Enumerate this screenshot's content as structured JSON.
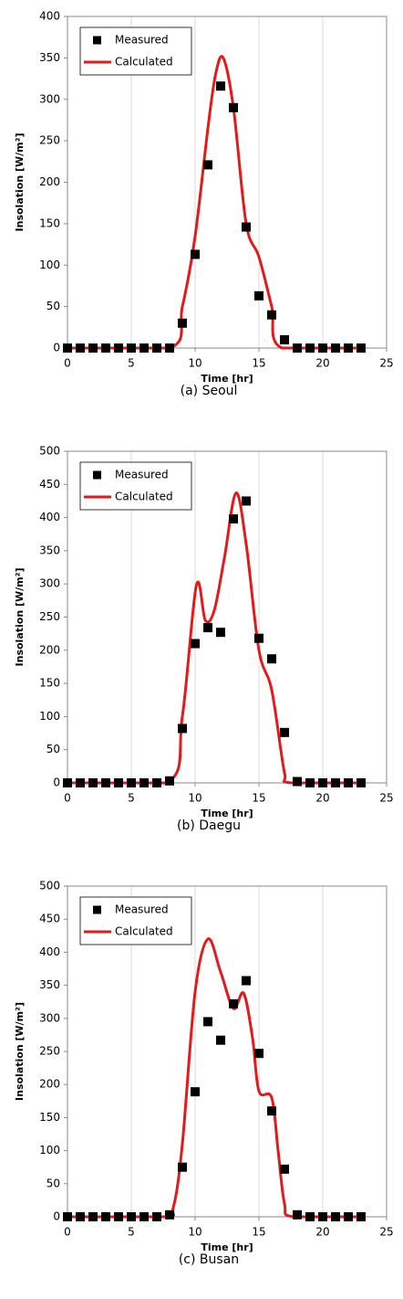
{
  "chart_data": [
    {
      "type": "line",
      "caption": "(a) Seoul",
      "x_label": "Time [hr]",
      "y_label": "Insolation [W/m²]",
      "xlim": [
        0,
        25
      ],
      "xticks": [
        0,
        5,
        10,
        15,
        20,
        25
      ],
      "ylim": [
        0,
        400
      ],
      "yticks": [
        0,
        50,
        100,
        150,
        200,
        250,
        300,
        350,
        400
      ],
      "grid": "x",
      "series": [
        {
          "name": "Measured",
          "color": "#000000",
          "marker": "square",
          "x": [
            0,
            1,
            2,
            3,
            4,
            5,
            6,
            7,
            8,
            9,
            10,
            11,
            12,
            13,
            14,
            15,
            16,
            17,
            18,
            19,
            20,
            21,
            22,
            23
          ],
          "values": [
            0,
            0,
            0,
            0,
            0,
            0,
            0,
            0,
            0,
            30,
            113,
            221,
            316,
            290,
            146,
            63,
            40,
            10,
            0,
            0,
            0,
            0,
            0,
            0
          ]
        },
        {
          "name": "Calculated",
          "color": "#e31a1c",
          "marker": "line",
          "x": [
            0,
            8,
            9,
            10,
            11,
            11.6,
            12.2,
            13,
            14,
            15,
            16,
            16.8,
            23
          ],
          "values": [
            0,
            0,
            50,
            135,
            265,
            330,
            350,
            290,
            150,
            110,
            50,
            0,
            0
          ]
        }
      ]
    },
    {
      "type": "line",
      "caption": "(b) Daegu",
      "x_label": "Time [hr]",
      "y_label": "Insolation [W/m²]",
      "xlim": [
        0,
        25
      ],
      "xticks": [
        0,
        5,
        10,
        15,
        20,
        25
      ],
      "ylim": [
        0,
        500
      ],
      "yticks": [
        0,
        50,
        100,
        150,
        200,
        250,
        300,
        350,
        400,
        450,
        500
      ],
      "grid": "x",
      "series": [
        {
          "name": "Measured",
          "color": "#000000",
          "marker": "square",
          "x": [
            0,
            1,
            2,
            3,
            4,
            5,
            6,
            7,
            8,
            9,
            10,
            11,
            12,
            13,
            14,
            15,
            16,
            17,
            18,
            19,
            20,
            21,
            22,
            23
          ],
          "values": [
            0,
            0,
            0,
            0,
            0,
            0,
            0,
            0,
            3,
            82,
            210,
            234,
            227,
            398,
            425,
            218,
            187,
            76,
            2,
            0,
            0,
            0,
            0,
            0
          ]
        },
        {
          "name": "Calculated",
          "color": "#e31a1c",
          "marker": "line",
          "x": [
            0,
            7.8,
            9,
            10.1,
            10.8,
            11.5,
            12.3,
            13.2,
            14,
            15,
            16,
            17,
            17.5,
            23
          ],
          "values": [
            0,
            0,
            100,
            298,
            245,
            260,
            340,
            437,
            360,
            200,
            140,
            15,
            0,
            0
          ]
        }
      ]
    },
    {
      "type": "line",
      "caption": "(c) Busan",
      "x_label": "Time [hr]",
      "y_label": "Insolation [W/m²]",
      "xlim": [
        0,
        25
      ],
      "xticks": [
        0,
        5,
        10,
        15,
        20,
        25
      ],
      "ylim": [
        0,
        500
      ],
      "yticks": [
        0,
        50,
        100,
        150,
        200,
        250,
        300,
        350,
        400,
        450,
        500
      ],
      "grid": "x",
      "series": [
        {
          "name": "Measured",
          "color": "#000000",
          "marker": "square",
          "x": [
            0,
            1,
            2,
            3,
            4,
            5,
            6,
            7,
            8,
            9,
            10,
            11,
            12,
            13,
            14,
            15,
            16,
            17,
            18,
            19,
            20,
            21,
            22,
            23
          ],
          "values": [
            0,
            0,
            0,
            0,
            0,
            0,
            0,
            0,
            3,
            75,
            189,
            295,
            267,
            322,
            357,
            247,
            160,
            72,
            3,
            0,
            0,
            0,
            0,
            0
          ]
        },
        {
          "name": "Calculated",
          "color": "#e31a1c",
          "marker": "line",
          "x": [
            0,
            7.5,
            8.3,
            9,
            10,
            11,
            12,
            13,
            13.8,
            14.5,
            15,
            16,
            16.5,
            17,
            17.7,
            23
          ],
          "values": [
            0,
            0,
            15,
            110,
            340,
            420,
            370,
            315,
            338,
            270,
            190,
            180,
            100,
            20,
            0,
            0
          ]
        }
      ]
    }
  ]
}
